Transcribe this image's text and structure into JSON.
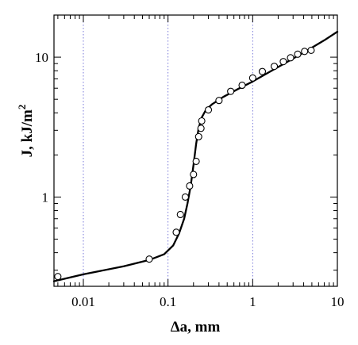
{
  "chart_data": {
    "type": "scatter",
    "xscale": "log",
    "yscale": "log",
    "xlim": [
      0.0045,
      10
    ],
    "ylim": [
      0.23,
      20
    ],
    "grid": {
      "x": true,
      "y": false,
      "x_positions": [
        0.01,
        0.1,
        1
      ]
    },
    "xlabel_main": "Δa, mm",
    "ylabel_main": "J, kJ/m",
    "ylabel_sup": "2",
    "xtick_labels": [
      {
        "value": 0.01,
        "label": "0.01"
      },
      {
        "value": 0.1,
        "label": "0.1"
      },
      {
        "value": 1,
        "label": "1"
      },
      {
        "value": 10,
        "label": "10"
      }
    ],
    "ytick_labels": [
      {
        "value": 1,
        "label": "1"
      },
      {
        "value": 10,
        "label": "10"
      }
    ],
    "series": [
      {
        "type": "scatter",
        "marker": "open-circle",
        "points": [
          {
            "x": 0.005,
            "y": 0.27
          },
          {
            "x": 0.06,
            "y": 0.36
          },
          {
            "x": 0.125,
            "y": 0.56
          },
          {
            "x": 0.14,
            "y": 0.75
          },
          {
            "x": 0.16,
            "y": 1.0
          },
          {
            "x": 0.18,
            "y": 1.2
          },
          {
            "x": 0.2,
            "y": 1.45
          },
          {
            "x": 0.215,
            "y": 1.8
          },
          {
            "x": 0.23,
            "y": 2.7
          },
          {
            "x": 0.245,
            "y": 3.1
          },
          {
            "x": 0.25,
            "y": 3.5
          },
          {
            "x": 0.3,
            "y": 4.2
          },
          {
            "x": 0.4,
            "y": 4.9
          },
          {
            "x": 0.55,
            "y": 5.7
          },
          {
            "x": 0.75,
            "y": 6.3
          },
          {
            "x": 1.0,
            "y": 7.1
          },
          {
            "x": 1.3,
            "y": 7.9
          },
          {
            "x": 1.8,
            "y": 8.6
          },
          {
            "x": 2.3,
            "y": 9.3
          },
          {
            "x": 2.8,
            "y": 9.9
          },
          {
            "x": 3.4,
            "y": 10.5
          },
          {
            "x": 4.1,
            "y": 11.0
          },
          {
            "x": 4.9,
            "y": 11.2
          }
        ]
      },
      {
        "type": "line",
        "style": "solid",
        "points": [
          {
            "x": 0.0045,
            "y": 0.25
          },
          {
            "x": 0.01,
            "y": 0.28
          },
          {
            "x": 0.03,
            "y": 0.32
          },
          {
            "x": 0.06,
            "y": 0.355
          },
          {
            "x": 0.09,
            "y": 0.39
          },
          {
            "x": 0.115,
            "y": 0.45
          },
          {
            "x": 0.135,
            "y": 0.55
          },
          {
            "x": 0.155,
            "y": 0.7
          },
          {
            "x": 0.17,
            "y": 0.9
          },
          {
            "x": 0.185,
            "y": 1.2
          },
          {
            "x": 0.2,
            "y": 1.7
          },
          {
            "x": 0.215,
            "y": 2.4
          },
          {
            "x": 0.23,
            "y": 3.1
          },
          {
            "x": 0.25,
            "y": 3.7
          },
          {
            "x": 0.28,
            "y": 4.2
          },
          {
            "x": 0.33,
            "y": 4.6
          },
          {
            "x": 0.45,
            "y": 5.2
          },
          {
            "x": 0.7,
            "y": 6.0
          },
          {
            "x": 1.0,
            "y": 6.7
          },
          {
            "x": 2.0,
            "y": 8.5
          },
          {
            "x": 4.0,
            "y": 10.8
          },
          {
            "x": 7.0,
            "y": 13.2
          },
          {
            "x": 10.0,
            "y": 15.2
          }
        ]
      }
    ]
  }
}
